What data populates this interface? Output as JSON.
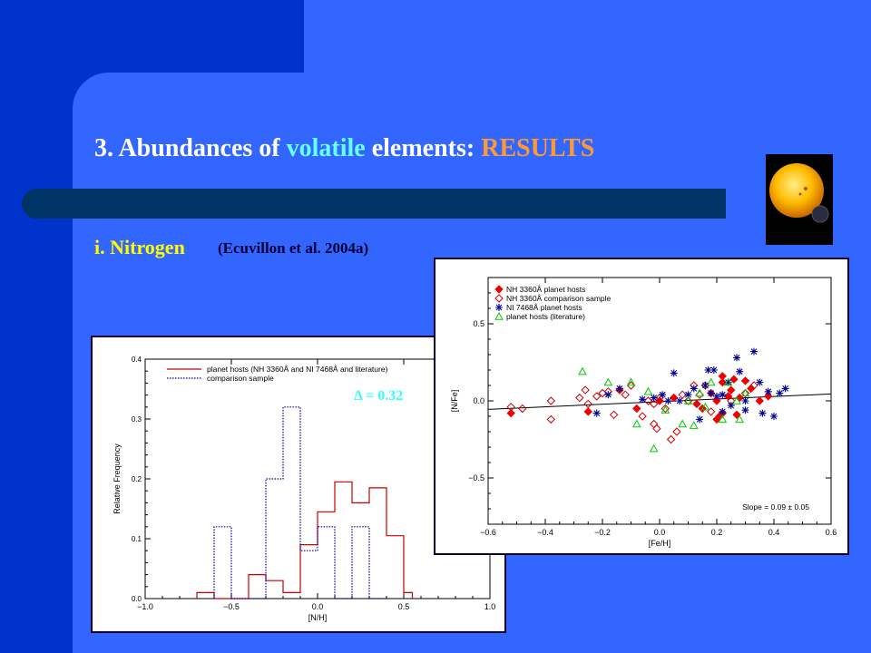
{
  "slide": {
    "title_prefix": "3. Abundances of ",
    "title_highlight": "volatile",
    "title_middle": " elements: ",
    "title_results": "RESULTS",
    "subtitle": "i. Nitrogen",
    "reference": "(Ecuvillon et al. 2004a)",
    "delta_label": "Δ = 0.32",
    "colors": {
      "background": "#3366ff",
      "band": "#0033cc",
      "bar": "#003366",
      "title": "#ffffff",
      "volatile": "#66ffff",
      "results": "#ff9933",
      "subtitle": "#ffff00"
    }
  },
  "chart_data": [
    {
      "type": "histogram",
      "xlabel": "[N/H]",
      "ylabel": "Relative Frequency",
      "xlim": [
        -1.0,
        1.0
      ],
      "ylim": [
        0,
        0.4
      ],
      "xticks": [
        "-1.0",
        "-0.5",
        "0.0",
        "0.5",
        "1.0"
      ],
      "yticks": [
        "0.0",
        "0.1",
        "0.2",
        "0.3",
        "0.4"
      ],
      "legend_position": "top-right",
      "series": [
        {
          "name": "planet hosts (NH 3360Å and NI 7468Å and literature)",
          "color": "#cc0000",
          "style": "solid",
          "bins": [
            [
              -0.7,
              -0.6,
              0.01
            ],
            [
              -0.6,
              -0.4,
              0.0
            ],
            [
              -0.4,
              -0.3,
              0.04
            ],
            [
              -0.3,
              -0.2,
              0.03
            ],
            [
              -0.2,
              -0.1,
              0.01
            ],
            [
              -0.1,
              0.0,
              0.09
            ],
            [
              0.0,
              0.1,
              0.145
            ],
            [
              0.1,
              0.2,
              0.195
            ],
            [
              0.2,
              0.3,
              0.16
            ],
            [
              0.3,
              0.4,
              0.185
            ],
            [
              0.4,
              0.5,
              0.105
            ],
            [
              0.5,
              0.55,
              0.01
            ]
          ]
        },
        {
          "name": "comparison sample",
          "color": "#000099",
          "style": "dotted",
          "bins": [
            [
              -0.6,
              -0.5,
              0.12
            ],
            [
              -0.5,
              -0.3,
              0.0
            ],
            [
              -0.3,
              -0.2,
              0.2
            ],
            [
              -0.2,
              -0.1,
              0.32
            ],
            [
              -0.1,
              0.0,
              0.08
            ],
            [
              0.0,
              0.1,
              0.12
            ],
            [
              0.1,
              0.2,
              0.0
            ],
            [
              0.2,
              0.3,
              0.12
            ],
            [
              0.3,
              0.4,
              0.0
            ]
          ]
        }
      ]
    },
    {
      "type": "scatter",
      "xlabel": "[Fe/H]",
      "ylabel": "[N/Fe]",
      "xlim": [
        -0.6,
        0.6
      ],
      "ylim": [
        -0.8,
        0.8
      ],
      "xticks": [
        "-0.6",
        "-0.4",
        "-0.2",
        "0.0",
        "0.2",
        "0.4",
        "0.6"
      ],
      "yticks": [
        "-0.5",
        "0.0",
        "0.5"
      ],
      "legend_position": "top-left",
      "annotation": "Slope = 0.09 ± 0.05",
      "fit_line": {
        "x": [
          -0.6,
          0.6
        ],
        "y": [
          -0.055,
          0.045
        ]
      },
      "series": [
        {
          "name": "NH 3360Å planet hosts",
          "marker": "filled-diamond",
          "color": "#ee0000",
          "points": [
            [
              -0.52,
              -0.08
            ],
            [
              -0.25,
              -0.07
            ],
            [
              -0.14,
              0.07
            ],
            [
              -0.08,
              -0.05
            ],
            [
              0.0,
              0.0
            ],
            [
              0.05,
              0.02
            ],
            [
              0.13,
              -0.02
            ],
            [
              0.15,
              -0.05
            ],
            [
              0.18,
              0.05
            ],
            [
              0.2,
              0.0
            ],
            [
              0.22,
              0.12
            ],
            [
              0.24,
              0.03
            ],
            [
              0.25,
              0.07
            ],
            [
              0.26,
              0.14
            ],
            [
              0.28,
              0.02
            ],
            [
              0.3,
              0.13
            ],
            [
              0.32,
              0.08
            ],
            [
              0.35,
              0.0
            ],
            [
              0.2,
              -0.12
            ],
            [
              0.22,
              -0.08
            ],
            [
              0.27,
              -0.09
            ],
            [
              0.38,
              0.03
            ],
            [
              0.22,
              0.16
            ],
            [
              0.21,
              -0.1
            ]
          ]
        },
        {
          "name": "NH 3360Å comparison sample",
          "marker": "open-diamond",
          "color": "#cc0000",
          "points": [
            [
              -0.52,
              -0.04
            ],
            [
              -0.48,
              -0.05
            ],
            [
              -0.38,
              0.0
            ],
            [
              -0.38,
              -0.12
            ],
            [
              -0.28,
              0.02
            ],
            [
              -0.26,
              0.07
            ],
            [
              -0.25,
              -0.02
            ],
            [
              -0.22,
              0.03
            ],
            [
              -0.2,
              0.05
            ],
            [
              -0.18,
              0.06
            ],
            [
              -0.16,
              -0.09
            ],
            [
              -0.12,
              0.04
            ],
            [
              -0.1,
              0.1
            ],
            [
              -0.06,
              -0.1
            ],
            [
              -0.04,
              0.0
            ],
            [
              -0.02,
              -0.02
            ],
            [
              -0.02,
              -0.15
            ],
            [
              -0.01,
              -0.18
            ],
            [
              0.0,
              0.02
            ],
            [
              0.02,
              -0.05
            ],
            [
              0.04,
              -0.25
            ],
            [
              0.06,
              -0.2
            ],
            [
              0.08,
              0.04
            ],
            [
              0.1,
              0.0
            ],
            [
              0.12,
              0.1
            ],
            [
              0.14,
              0.04
            ],
            [
              0.16,
              0.1
            ],
            [
              0.18,
              -0.07
            ],
            [
              0.25,
              0.0
            ],
            [
              0.3,
              0.05
            ],
            [
              0.33,
              0.1
            ]
          ]
        },
        {
          "name": "NI 7468Å planet hosts",
          "marker": "asterisk",
          "color": "#000099",
          "points": [
            [
              -0.22,
              -0.08
            ],
            [
              -0.18,
              0.04
            ],
            [
              -0.14,
              0.08
            ],
            [
              -0.06,
              0.01
            ],
            [
              -0.02,
              0.02
            ],
            [
              0.01,
              0.04
            ],
            [
              0.03,
              0.0
            ],
            [
              0.05,
              0.18
            ],
            [
              0.07,
              0.0
            ],
            [
              0.1,
              0.04
            ],
            [
              0.12,
              0.08
            ],
            [
              0.14,
              -0.12
            ],
            [
              0.16,
              0.1
            ],
            [
              0.17,
              0.2
            ],
            [
              0.19,
              0.2
            ],
            [
              0.2,
              0.03
            ],
            [
              0.22,
              0.04
            ],
            [
              0.24,
              0.12
            ],
            [
              0.25,
              -0.03
            ],
            [
              0.27,
              0.28
            ],
            [
              0.28,
              0.19
            ],
            [
              0.3,
              0.0
            ],
            [
              0.33,
              0.32
            ],
            [
              0.35,
              0.12
            ],
            [
              0.36,
              -0.08
            ],
            [
              0.38,
              0.06
            ],
            [
              0.4,
              -0.1
            ],
            [
              0.42,
              0.05
            ],
            [
              0.44,
              0.08
            ],
            [
              0.3,
              -0.06
            ],
            [
              0.22,
              -0.07
            ],
            [
              0.18,
              0.05
            ]
          ]
        },
        {
          "name": "planet hosts (literature)",
          "marker": "open-triangle",
          "color": "#00cc00",
          "points": [
            [
              -0.27,
              0.19
            ],
            [
              -0.18,
              0.12
            ],
            [
              -0.1,
              0.12
            ],
            [
              -0.08,
              -0.15
            ],
            [
              -0.04,
              0.06
            ],
            [
              -0.02,
              -0.31
            ],
            [
              0.02,
              -0.06
            ],
            [
              0.08,
              -0.15
            ],
            [
              0.1,
              0.0
            ],
            [
              0.12,
              -0.16
            ],
            [
              0.14,
              0.05
            ],
            [
              0.16,
              -0.04
            ],
            [
              0.18,
              0.12
            ],
            [
              0.22,
              -0.12
            ],
            [
              0.24,
              0.12
            ],
            [
              0.27,
              0.0
            ],
            [
              0.28,
              -0.12
            ],
            [
              0.3,
              0.05
            ]
          ]
        }
      ]
    }
  ]
}
